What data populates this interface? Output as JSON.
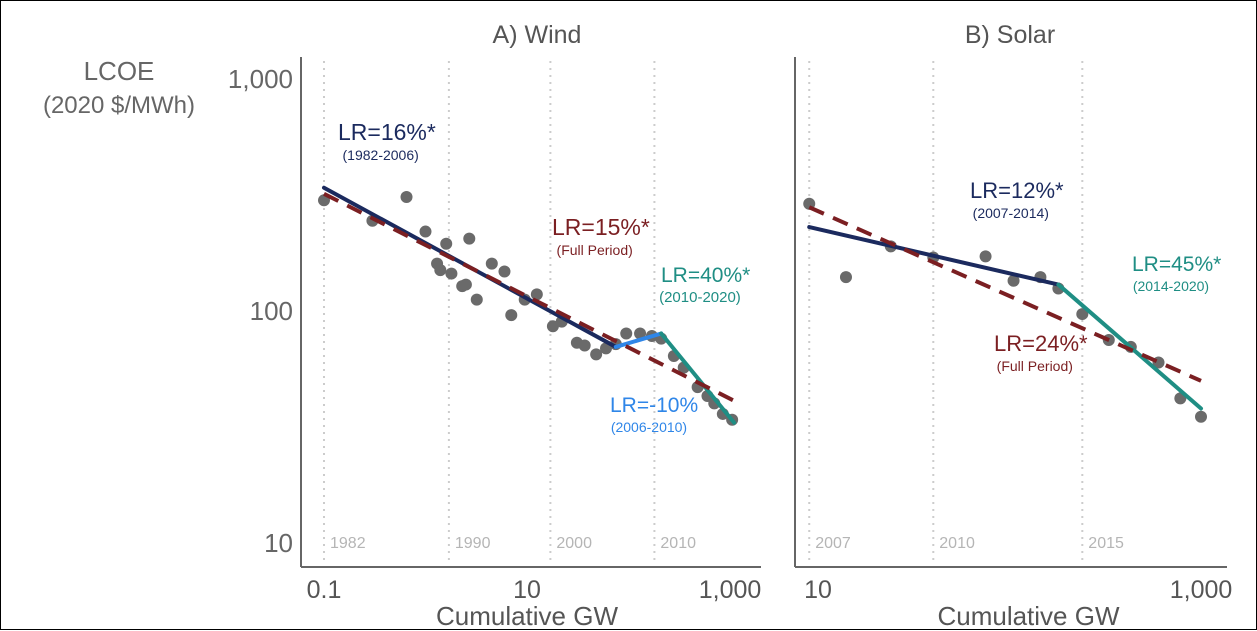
{
  "y_axis": {
    "label_line1": "LCOE",
    "label_line2": "(2020 $/MWh)",
    "ticks": [
      {
        "value": 1000,
        "label": "1,000"
      },
      {
        "value": 100,
        "label": "100"
      },
      {
        "value": 10,
        "label": "10"
      }
    ],
    "scale": "log",
    "range": [
      10,
      1000
    ]
  },
  "colors": {
    "navy": "#1b2a5e",
    "dark_red": "#7b1f22",
    "teal": "#1f8e84",
    "blue": "#2f86e8",
    "dots": "#6a6a6a",
    "axis": "#666666",
    "year_lines": "#cccccc",
    "year_labels": "#b5b5b5"
  },
  "chart_data": [
    {
      "type": "scatter",
      "title": "A) Wind",
      "xlabel": "Cumulative GW",
      "ylabel": "LCOE (2020 $/MWh)",
      "x_scale": "log",
      "y_scale": "log",
      "xlim": [
        0.08,
        1400
      ],
      "ylim": [
        10,
        1000
      ],
      "grid": "vertical dotted lines at years",
      "x_ticks": [
        {
          "value": 0.1,
          "label": "0.1"
        },
        {
          "value": 10,
          "label": "10"
        },
        {
          "value": 1000,
          "label": "1,000"
        }
      ],
      "year_markers": [
        {
          "x": 0.1,
          "label": "1982"
        },
        {
          "x": 1.7,
          "label": "1990"
        },
        {
          "x": 17,
          "label": "2000"
        },
        {
          "x": 180,
          "label": "2010"
        }
      ],
      "points": [
        {
          "x": 0.1,
          "y": 300
        },
        {
          "x": 0.3,
          "y": 245
        },
        {
          "x": 0.65,
          "y": 310
        },
        {
          "x": 1.0,
          "y": 220
        },
        {
          "x": 1.3,
          "y": 160
        },
        {
          "x": 1.4,
          "y": 150
        },
        {
          "x": 1.6,
          "y": 195
        },
        {
          "x": 1.8,
          "y": 145
        },
        {
          "x": 2.3,
          "y": 128
        },
        {
          "x": 2.5,
          "y": 130
        },
        {
          "x": 2.7,
          "y": 205
        },
        {
          "x": 3.2,
          "y": 112
        },
        {
          "x": 4.5,
          "y": 160
        },
        {
          "x": 6.0,
          "y": 148
        },
        {
          "x": 7.0,
          "y": 96
        },
        {
          "x": 9.5,
          "y": 112
        },
        {
          "x": 12.5,
          "y": 118
        },
        {
          "x": 18,
          "y": 86
        },
        {
          "x": 22,
          "y": 90
        },
        {
          "x": 31,
          "y": 73
        },
        {
          "x": 37,
          "y": 71
        },
        {
          "x": 48,
          "y": 65
        },
        {
          "x": 60,
          "y": 69
        },
        {
          "x": 75,
          "y": 72
        },
        {
          "x": 95,
          "y": 80
        },
        {
          "x": 130,
          "y": 80
        },
        {
          "x": 170,
          "y": 78
        },
        {
          "x": 210,
          "y": 76
        },
        {
          "x": 280,
          "y": 64
        },
        {
          "x": 350,
          "y": 57
        },
        {
          "x": 480,
          "y": 47
        },
        {
          "x": 600,
          "y": 43
        },
        {
          "x": 700,
          "y": 40
        },
        {
          "x": 850,
          "y": 36
        },
        {
          "x": 1050,
          "y": 34
        }
      ],
      "fits": [
        {
          "name": "1982-2006",
          "color": "navy",
          "style": "solid",
          "x": [
            0.1,
            75
          ],
          "y": [
            340,
            70
          ]
        },
        {
          "name": "2006-2010",
          "color": "blue",
          "style": "solid",
          "x": [
            75,
            210
          ],
          "y": [
            70,
            80
          ]
        },
        {
          "name": "2010-2020",
          "color": "teal",
          "style": "solid",
          "x": [
            210,
            1100
          ],
          "y": [
            80,
            33
          ]
        },
        {
          "name": "Full Period",
          "color": "dark_red",
          "style": "dashed",
          "x": [
            0.1,
            1100
          ],
          "y": [
            320,
            41
          ]
        }
      ],
      "annotations": [
        {
          "text": "LR=16%*",
          "sub": "(1982-2006)",
          "color": "navy"
        },
        {
          "text": "LR=15%*",
          "sub": "(Full Period)",
          "color": "dark_red"
        },
        {
          "text": "LR=40%*",
          "sub": "(2010-2020)",
          "color": "teal"
        },
        {
          "text": "LR=-10%",
          "sub": "(2006-2010)",
          "color": "blue"
        }
      ]
    },
    {
      "type": "scatter",
      "title": "B) Solar",
      "xlabel": "Cumulative GW",
      "ylabel": "LCOE (2020 $/MWh)",
      "x_scale": "log",
      "y_scale": "log",
      "xlim": [
        8,
        1600
      ],
      "ylim": [
        10,
        1000
      ],
      "grid": "vertical dotted lines at years",
      "x_ticks": [
        {
          "value": 10,
          "label": "10"
        },
        {
          "value": 1000,
          "label": "1,000"
        }
      ],
      "year_markers": [
        {
          "x": 9,
          "label": "2007"
        },
        {
          "x": 40,
          "label": "2010"
        },
        {
          "x": 240,
          "label": "2015"
        }
      ],
      "points": [
        {
          "x": 9,
          "y": 290
        },
        {
          "x": 14,
          "y": 140
        },
        {
          "x": 24,
          "y": 190
        },
        {
          "x": 40,
          "y": 170
        },
        {
          "x": 75,
          "y": 172
        },
        {
          "x": 105,
          "y": 135
        },
        {
          "x": 145,
          "y": 140
        },
        {
          "x": 180,
          "y": 125
        },
        {
          "x": 240,
          "y": 97
        },
        {
          "x": 330,
          "y": 75
        },
        {
          "x": 430,
          "y": 70
        },
        {
          "x": 600,
          "y": 60
        },
        {
          "x": 780,
          "y": 42
        },
        {
          "x": 1000,
          "y": 35
        }
      ],
      "fits": [
        {
          "name": "2007-2014",
          "color": "navy",
          "style": "solid",
          "x": [
            9,
            180
          ],
          "y": [
            230,
            130
          ]
        },
        {
          "name": "2014-2020",
          "color": "teal",
          "style": "solid",
          "x": [
            180,
            1000
          ],
          "y": [
            130,
            38
          ]
        },
        {
          "name": "Full Period",
          "color": "dark_red",
          "style": "dashed",
          "x": [
            9,
            1000
          ],
          "y": [
            280,
            50
          ]
        }
      ],
      "annotations": [
        {
          "text": "LR=12%*",
          "sub": "(2007-2014)",
          "color": "navy"
        },
        {
          "text": "LR=45%*",
          "sub": "(2014-2020)",
          "color": "teal"
        },
        {
          "text": "LR=24%*",
          "sub": "(Full Period)",
          "color": "dark_red"
        }
      ]
    }
  ]
}
